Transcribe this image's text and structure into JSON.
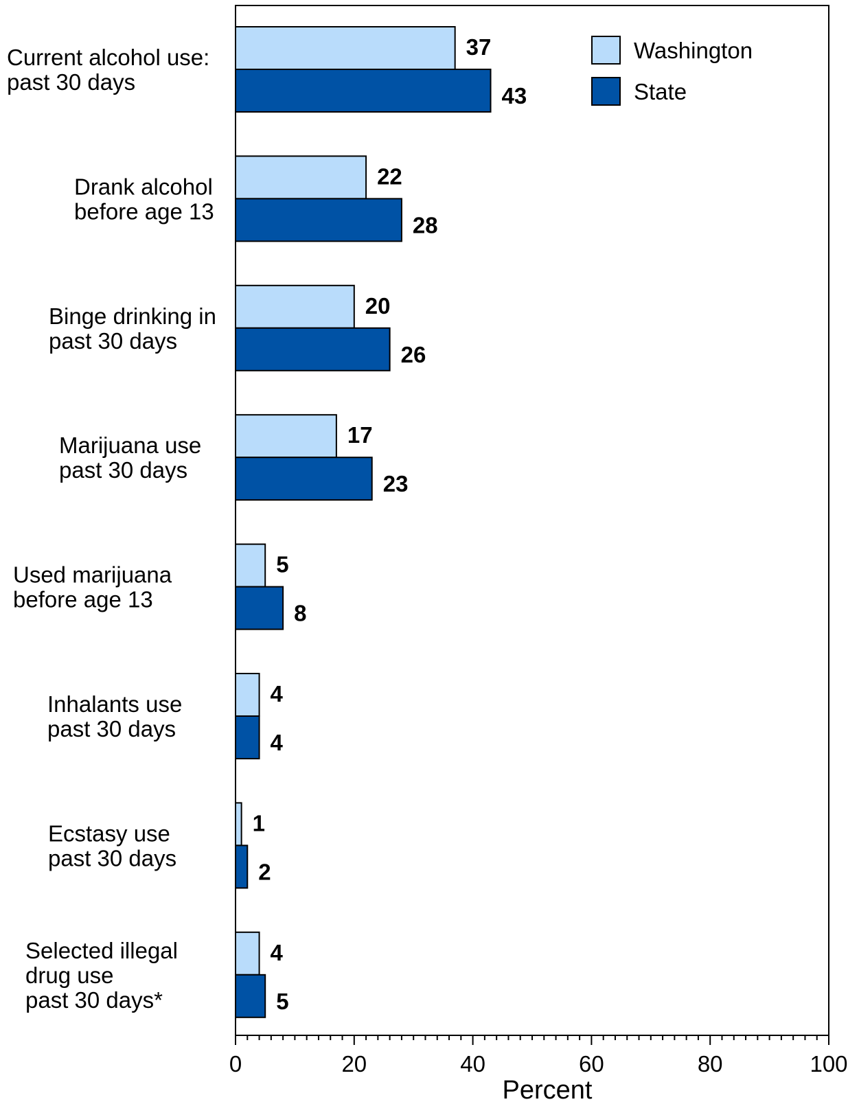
{
  "chart_data": {
    "type": "bar",
    "orientation": "horizontal",
    "title": "",
    "xlabel": "Percent",
    "ylabel": "",
    "xlim": [
      0,
      100
    ],
    "x_ticks": [
      0,
      20,
      40,
      60,
      80,
      100
    ],
    "grid": false,
    "legend_position": "top-right",
    "categories": [
      [
        "Current alcohol use:",
        "past 30 days"
      ],
      [
        "Drank alcohol",
        "before age 13"
      ],
      [
        "Binge drinking in",
        "past 30 days"
      ],
      [
        "Marijuana use",
        "past 30 days"
      ],
      [
        "Used marijuana",
        "before age 13"
      ],
      [
        "Inhalants use",
        "past 30 days"
      ],
      [
        "Ecstasy use",
        "past 30 days"
      ],
      [
        "Selected illegal",
        "drug use",
        "past 30 days*"
      ]
    ],
    "series": [
      {
        "name": "Washington",
        "color": "#b9dcfb",
        "values": [
          37,
          22,
          20,
          17,
          5,
          4,
          1,
          4
        ]
      },
      {
        "name": "State",
        "color": "#0052a5",
        "values": [
          43,
          28,
          26,
          23,
          8,
          4,
          2,
          5
        ]
      }
    ]
  }
}
